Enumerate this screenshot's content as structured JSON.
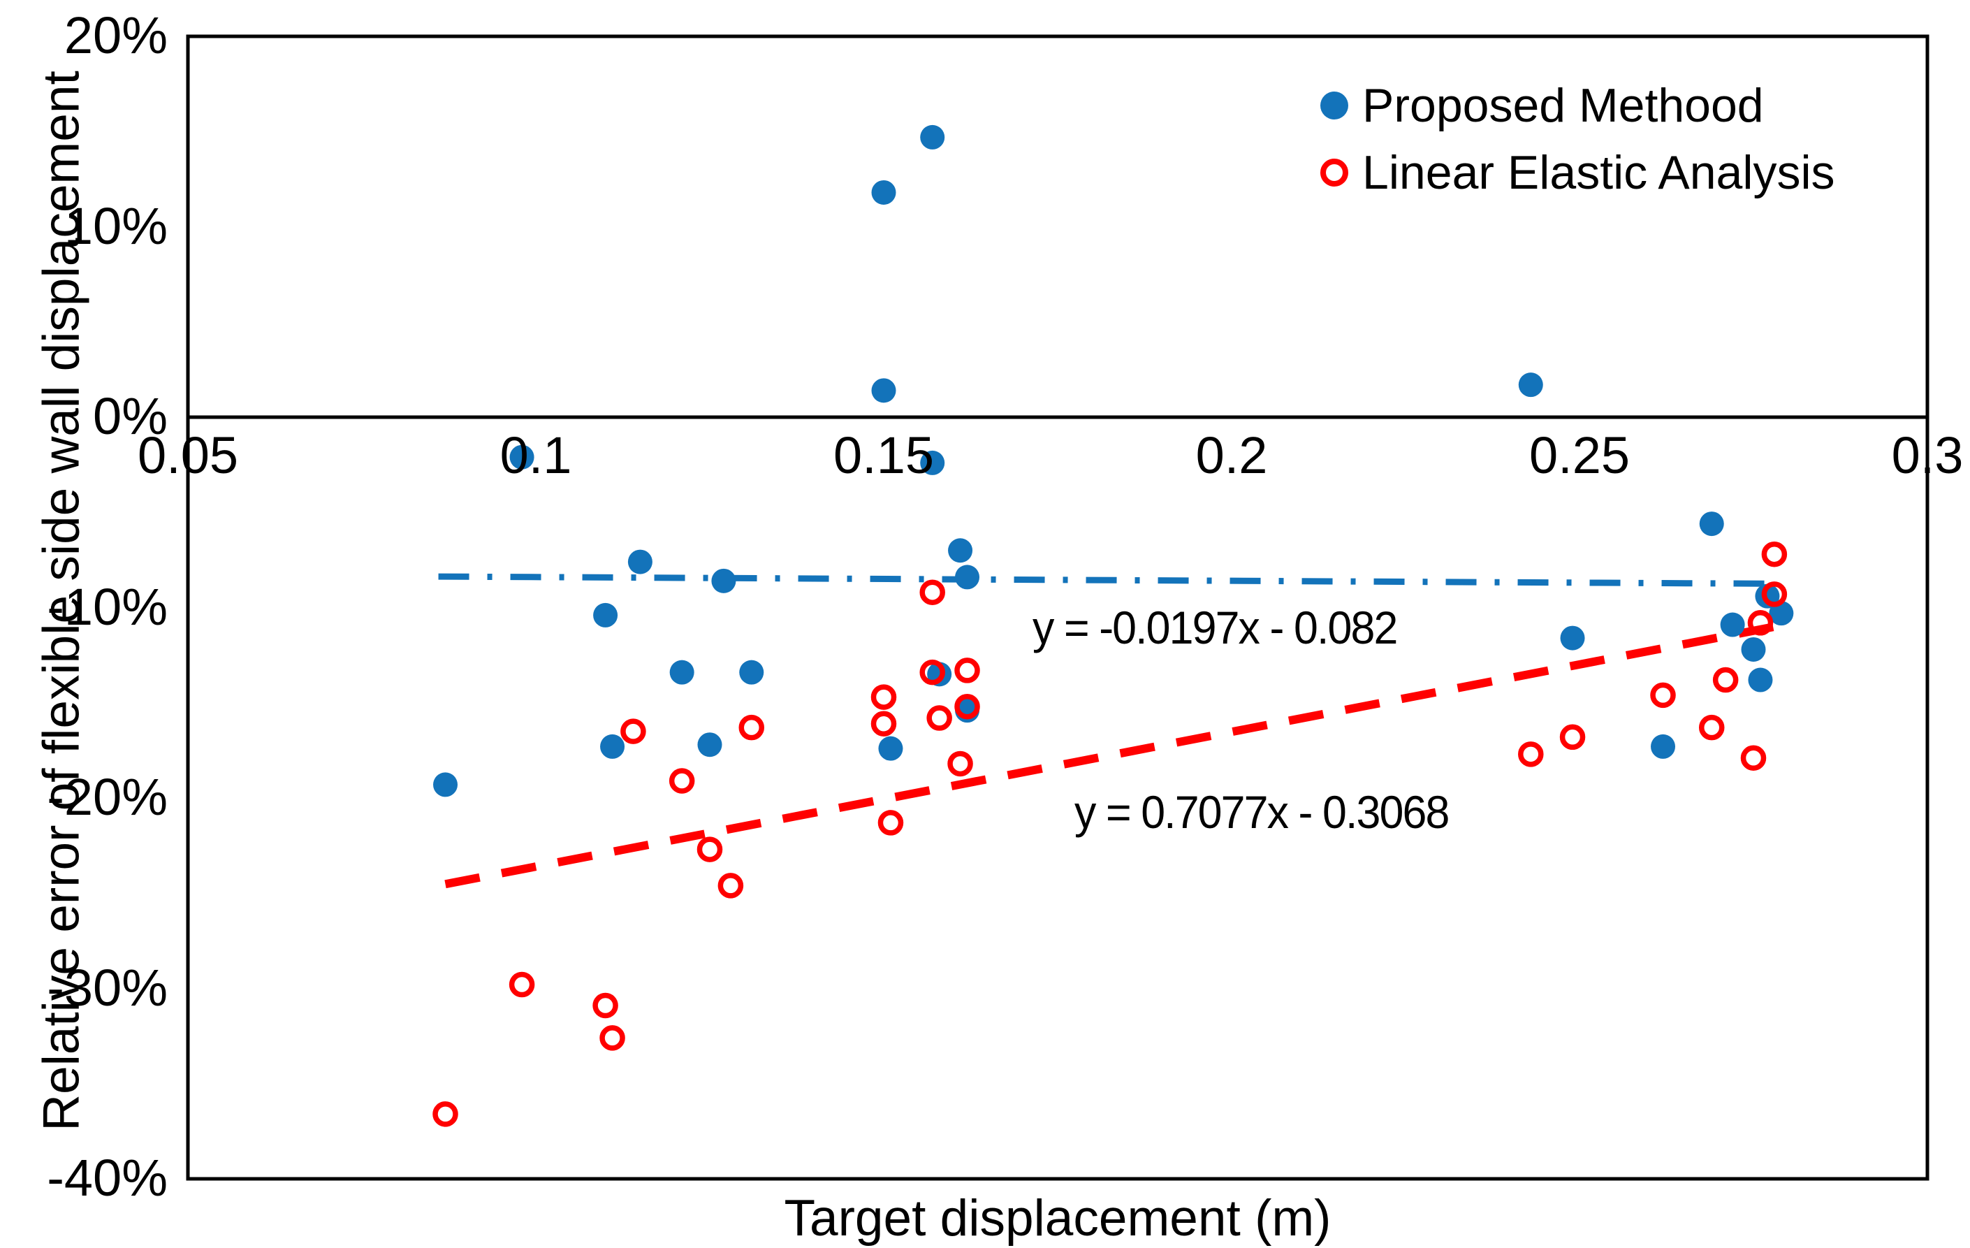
{
  "chart_data": {
    "type": "scatter",
    "xlabel": "Target displacement (m)",
    "ylabel": "Relative error of  flexible side wall displacement",
    "xlim": [
      0.05,
      0.3
    ],
    "ylim_pct": [
      -40,
      20
    ],
    "grid": false,
    "legend_position": "top-right-inside",
    "x_ticks": {
      "values": [
        0.05,
        0.1,
        0.15,
        0.2,
        0.25,
        0.3
      ],
      "labels": [
        "0.05",
        "0.1",
        "0.15",
        "0.2",
        "0.25",
        "0.3"
      ]
    },
    "y_ticks": {
      "values_pct": [
        20,
        10,
        0,
        -10,
        -20,
        -30,
        -40
      ],
      "labels": [
        "20%",
        "10%",
        "0%",
        "-10%",
        "-20%",
        "-30%",
        "-40%"
      ]
    },
    "series": [
      {
        "name": "Proposed Methood",
        "marker": "filled-circle",
        "color": "#1373BA",
        "points": [
          {
            "x": 0.087,
            "y_pct": -19.3
          },
          {
            "x": 0.098,
            "y_pct": -2.1
          },
          {
            "x": 0.11,
            "y_pct": -10.4
          },
          {
            "x": 0.111,
            "y_pct": -17.3
          },
          {
            "x": 0.115,
            "y_pct": -7.6
          },
          {
            "x": 0.121,
            "y_pct": -13.4
          },
          {
            "x": 0.125,
            "y_pct": -17.2
          },
          {
            "x": 0.127,
            "y_pct": -8.6
          },
          {
            "x": 0.131,
            "y_pct": -13.4
          },
          {
            "x": 0.15,
            "y_pct": 11.8
          },
          {
            "x": 0.15,
            "y_pct": 1.4
          },
          {
            "x": 0.151,
            "y_pct": -17.4
          },
          {
            "x": 0.157,
            "y_pct": 14.7
          },
          {
            "x": 0.157,
            "y_pct": -2.4
          },
          {
            "x": 0.158,
            "y_pct": -13.5
          },
          {
            "x": 0.161,
            "y_pct": -7.0
          },
          {
            "x": 0.162,
            "y_pct": -8.4
          },
          {
            "x": 0.162,
            "y_pct": -15.4
          },
          {
            "x": 0.243,
            "y_pct": 1.7
          },
          {
            "x": 0.249,
            "y_pct": -11.6
          },
          {
            "x": 0.262,
            "y_pct": -17.3
          },
          {
            "x": 0.269,
            "y_pct": -5.6
          },
          {
            "x": 0.272,
            "y_pct": -10.9
          },
          {
            "x": 0.275,
            "y_pct": -12.2
          },
          {
            "x": 0.276,
            "y_pct": -13.8
          },
          {
            "x": 0.277,
            "y_pct": -9.4
          },
          {
            "x": 0.279,
            "y_pct": -10.3
          }
        ]
      },
      {
        "name": "Linear Elastic Analysis",
        "marker": "open-circle",
        "color": "#FF0000",
        "points": [
          {
            "x": 0.087,
            "y_pct": -36.6
          },
          {
            "x": 0.098,
            "y_pct": -29.8
          },
          {
            "x": 0.11,
            "y_pct": -30.9
          },
          {
            "x": 0.111,
            "y_pct": -32.6
          },
          {
            "x": 0.114,
            "y_pct": -16.5
          },
          {
            "x": 0.121,
            "y_pct": -19.1
          },
          {
            "x": 0.125,
            "y_pct": -22.7
          },
          {
            "x": 0.128,
            "y_pct": -24.6
          },
          {
            "x": 0.131,
            "y_pct": -16.3
          },
          {
            "x": 0.15,
            "y_pct": -14.7
          },
          {
            "x": 0.15,
            "y_pct": -16.1
          },
          {
            "x": 0.151,
            "y_pct": -21.3
          },
          {
            "x": 0.157,
            "y_pct": -9.2
          },
          {
            "x": 0.157,
            "y_pct": -13.4
          },
          {
            "x": 0.158,
            "y_pct": -15.8
          },
          {
            "x": 0.161,
            "y_pct": -18.2
          },
          {
            "x": 0.162,
            "y_pct": -13.3
          },
          {
            "x": 0.162,
            "y_pct": -15.2
          },
          {
            "x": 0.243,
            "y_pct": -17.7
          },
          {
            "x": 0.249,
            "y_pct": -16.8
          },
          {
            "x": 0.262,
            "y_pct": -14.6
          },
          {
            "x": 0.269,
            "y_pct": -16.3
          },
          {
            "x": 0.271,
            "y_pct": -13.8
          },
          {
            "x": 0.275,
            "y_pct": -17.9
          },
          {
            "x": 0.276,
            "y_pct": -10.8
          },
          {
            "x": 0.278,
            "y_pct": -7.2
          },
          {
            "x": 0.278,
            "y_pct": -9.3
          }
        ]
      }
    ],
    "trendlines": [
      {
        "series": "Proposed Methood",
        "equation": "y = -0.0197x - 0.082",
        "slope": -0.0197,
        "intercept": -0.082,
        "style": "dash-dot",
        "color": "#1373BA",
        "x_range": [
          0.086,
          0.278
        ]
      },
      {
        "series": "Linear Elastic Analysis",
        "equation": "y = 0.7077x - 0.3068",
        "slope": 0.7077,
        "intercept": -0.3068,
        "style": "dashed",
        "color": "#FF0000",
        "x_range": [
          0.087,
          0.28
        ]
      }
    ]
  }
}
